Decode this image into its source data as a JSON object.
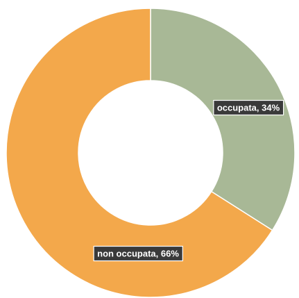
{
  "chart_data": {
    "type": "pie",
    "variant": "donut",
    "title": "",
    "slices": [
      {
        "label": "occupata",
        "value": 34,
        "value_label": "34%",
        "color": "#a8b896"
      },
      {
        "label": "non occupata",
        "value": 66,
        "value_label": "66%",
        "color": "#f3a84b"
      }
    ],
    "legend": "none",
    "data_labels": "category-and-percent"
  }
}
